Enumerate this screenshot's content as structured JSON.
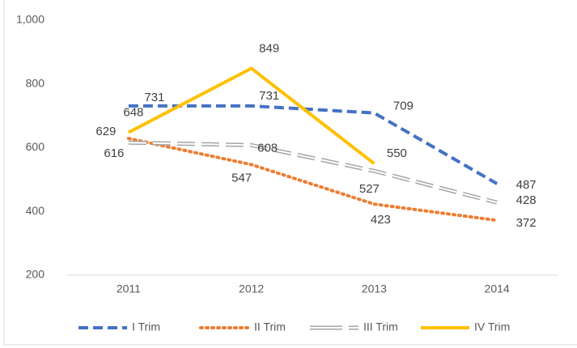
{
  "chart_data": {
    "type": "line",
    "categories": [
      "2011",
      "2012",
      "2013",
      "2014"
    ],
    "series": [
      {
        "name": "I Trim",
        "color": "#4472c4",
        "style": "dashed",
        "values": [
          731,
          731,
          709,
          487
        ]
      },
      {
        "name": "II Trim",
        "color": "#ed7d31",
        "style": "dotted",
        "values": [
          629,
          547,
          423,
          372
        ]
      },
      {
        "name": "III Trim",
        "color": "#a5a5a5",
        "style": "double-dashed",
        "values": [
          616,
          608,
          527,
          428
        ]
      },
      {
        "name": "IV Trim",
        "color": "#ffc000",
        "style": "solid",
        "values": [
          648,
          849,
          550,
          null
        ]
      }
    ],
    "ylim": [
      200,
      1000
    ],
    "yticks": [
      200,
      400,
      600,
      800,
      {
        "value": 1000,
        "label": "1,000"
      }
    ],
    "grid": false,
    "legend": "bottom"
  }
}
